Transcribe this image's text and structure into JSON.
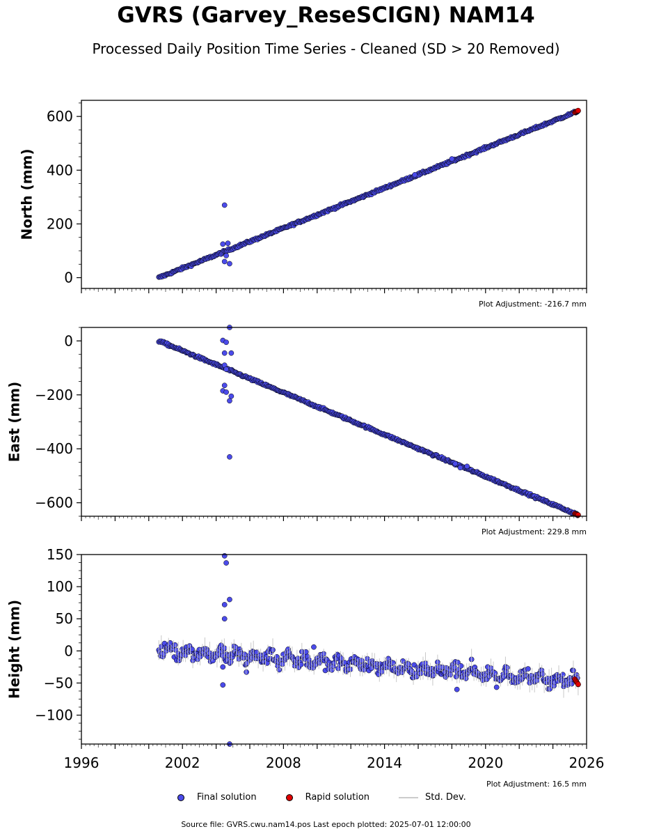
{
  "title": "GVRS (Garvey_ReseSCIGN) NAM14",
  "subtitle": "Processed Daily Position Time Series - Cleaned (SD > 20 Removed)",
  "legend": {
    "final": "Final solution",
    "rapid": "Rapid solution",
    "std": "Std. Dev."
  },
  "colors": {
    "final": "#4b4bea",
    "rapid": "#e00000",
    "std": "#c8c8c8",
    "edge": "#000000"
  },
  "footer": "Source file: GVRS.cwu.nam14.pos  Last epoch plotted: 2025-07-01 12:00:00",
  "chart_data": [
    {
      "type": "scatter",
      "ylabel": "North (mm)",
      "xlim": [
        1996,
        2026
      ],
      "ylim": [
        -40,
        660
      ],
      "yticks": [
        0,
        200,
        400,
        600
      ],
      "xticks": [],
      "adjustment": "Plot Adjustment: -216.7 mm",
      "trend": {
        "x": [
          2000.6,
          2025.5
        ],
        "y": [
          0,
          620
        ]
      },
      "noise": 3,
      "outliers": [
        {
          "x": 2004.5,
          "y": 270
        },
        {
          "x": 2004.5,
          "y": 60
        },
        {
          "x": 2004.8,
          "y": 52
        },
        {
          "x": 2004.4,
          "y": 125
        },
        {
          "x": 2004.7,
          "y": 128
        },
        {
          "x": 2004.6,
          "y": 82
        },
        {
          "x": 2018.0,
          "y": 442
        },
        {
          "x": 2015.8,
          "y": 383
        }
      ],
      "rapid": {
        "x": [
          2025.3,
          2025.5
        ],
        "y": [
          615,
          622
        ]
      }
    },
    {
      "type": "scatter",
      "ylabel": "East (mm)",
      "xlim": [
        1996,
        2026
      ],
      "ylim": [
        -650,
        50
      ],
      "yticks": [
        0,
        -200,
        -400,
        -600
      ],
      "xticks": [],
      "adjustment": "Plot Adjustment: 229.8 mm",
      "trend": {
        "x": [
          2000.6,
          2025.5
        ],
        "y": [
          0,
          -645
        ]
      },
      "noise": 3,
      "outliers": [
        {
          "x": 2004.8,
          "y": 50
        },
        {
          "x": 2004.4,
          "y": 2
        },
        {
          "x": 2004.6,
          "y": -5
        },
        {
          "x": 2004.5,
          "y": -45
        },
        {
          "x": 2004.9,
          "y": -45
        },
        {
          "x": 2004.5,
          "y": -90
        },
        {
          "x": 2004.6,
          "y": -105
        },
        {
          "x": 2004.5,
          "y": -165
        },
        {
          "x": 2004.4,
          "y": -185
        },
        {
          "x": 2004.6,
          "y": -190
        },
        {
          "x": 2004.9,
          "y": -205
        },
        {
          "x": 2004.8,
          "y": -222
        },
        {
          "x": 2004.8,
          "y": -430
        },
        {
          "x": 2018.2,
          "y": -455
        },
        {
          "x": 2018.5,
          "y": -470
        },
        {
          "x": 2018.9,
          "y": -465
        }
      ],
      "rapid": {
        "x": [
          2025.3,
          2025.5
        ],
        "y": [
          -640,
          -645
        ]
      }
    },
    {
      "type": "scatter",
      "ylabel": "Height (mm)",
      "xlim": [
        1996,
        2026
      ],
      "ylim": [
        -145,
        150
      ],
      "yticks": [
        150,
        100,
        50,
        0,
        -50,
        -100
      ],
      "xticks": [
        1996,
        2002,
        2008,
        2014,
        2020,
        2026
      ],
      "adjustment": "Plot Adjustment: 16.5 mm",
      "trend": {
        "x": [
          2000.6,
          2025.5
        ],
        "y": [
          2,
          -47
        ]
      },
      "noise": 8,
      "outliers": [
        {
          "x": 2004.5,
          "y": 148
        },
        {
          "x": 2004.6,
          "y": 137
        },
        {
          "x": 2004.8,
          "y": 80
        },
        {
          "x": 2004.5,
          "y": 72
        },
        {
          "x": 2004.5,
          "y": 50
        },
        {
          "x": 2004.4,
          "y": -25
        },
        {
          "x": 2004.4,
          "y": -53
        },
        {
          "x": 2004.8,
          "y": -145
        },
        {
          "x": 2005.8,
          "y": -33
        },
        {
          "x": 2009.8,
          "y": 6
        },
        {
          "x": 2018.3,
          "y": -60
        }
      ],
      "rapid": {
        "x": [
          2025.3,
          2025.5
        ],
        "y": [
          -44,
          -52
        ]
      }
    }
  ]
}
